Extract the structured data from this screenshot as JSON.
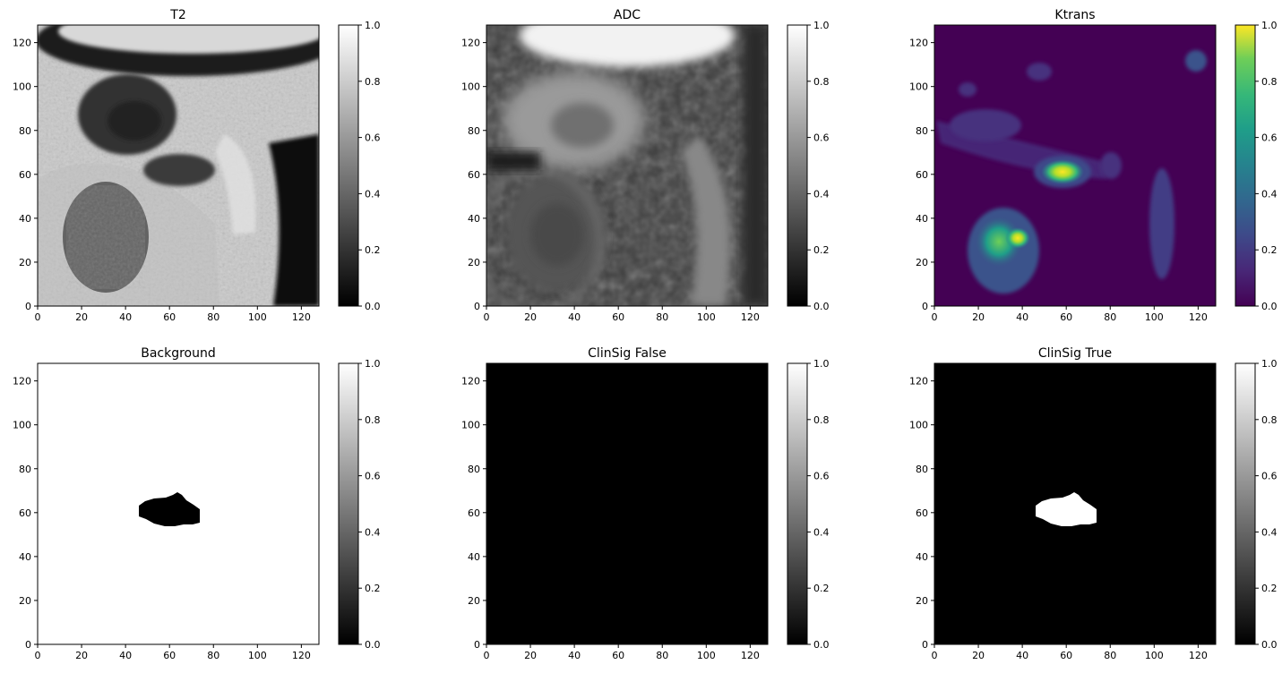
{
  "chart_data": [
    {
      "type": "heatmap",
      "title": "T2",
      "colormap": "gray",
      "content": "mri-t2",
      "xlim": [
        0,
        128
      ],
      "ylim": [
        0,
        128
      ],
      "xticks": [
        0,
        20,
        40,
        60,
        80,
        100,
        120
      ],
      "yticks": [
        0,
        20,
        40,
        60,
        80,
        100,
        120
      ],
      "colorbar": {
        "range": [
          0.0,
          1.0
        ],
        "ticks": [
          "0.0",
          "0.2",
          "0.4",
          "0.6",
          "0.8",
          "1.0"
        ]
      }
    },
    {
      "type": "heatmap",
      "title": "ADC",
      "colormap": "gray",
      "content": "mri-adc",
      "xlim": [
        0,
        128
      ],
      "ylim": [
        0,
        128
      ],
      "xticks": [
        0,
        20,
        40,
        60,
        80,
        100,
        120
      ],
      "yticks": [
        0,
        20,
        40,
        60,
        80,
        100,
        120
      ],
      "colorbar": {
        "range": [
          0.0,
          1.0
        ],
        "ticks": [
          "0.0",
          "0.2",
          "0.4",
          "0.6",
          "0.8",
          "1.0"
        ]
      }
    },
    {
      "type": "heatmap",
      "title": "Ktrans",
      "colormap": "viridis",
      "content": "mri-ktrans",
      "xlim": [
        0,
        128
      ],
      "ylim": [
        0,
        128
      ],
      "xticks": [
        0,
        20,
        40,
        60,
        80,
        100,
        120
      ],
      "yticks": [
        0,
        20,
        40,
        60,
        80,
        100,
        120
      ],
      "colorbar": {
        "range": [
          0.0,
          1.0
        ],
        "ticks": [
          "0.0",
          "0.2",
          "0.4",
          "0.6",
          "0.8",
          "1.0"
        ]
      },
      "hotspots": [
        {
          "x": 38,
          "y": 30,
          "value": 1.0
        },
        {
          "x": 57,
          "y": 61,
          "value": 0.85
        },
        {
          "x": 28,
          "y": 33,
          "value": 0.6
        }
      ]
    },
    {
      "type": "heatmap",
      "title": "Background",
      "colormap": "gray",
      "content": "mask",
      "background_value": 1.0,
      "mask_value": 0.0,
      "mask_region": {
        "x": [
          46,
          74
        ],
        "y": [
          53,
          67
        ]
      },
      "xlim": [
        0,
        128
      ],
      "ylim": [
        0,
        128
      ],
      "xticks": [
        0,
        20,
        40,
        60,
        80,
        100,
        120
      ],
      "yticks": [
        0,
        20,
        40,
        60,
        80,
        100,
        120
      ],
      "colorbar": {
        "range": [
          0.0,
          1.0
        ],
        "ticks": [
          "0.0",
          "0.2",
          "0.4",
          "0.6",
          "0.8",
          "1.0"
        ]
      }
    },
    {
      "type": "heatmap",
      "title": "ClinSig False",
      "colormap": "gray",
      "content": "mask",
      "background_value": 0.0,
      "xlim": [
        0,
        128
      ],
      "ylim": [
        0,
        128
      ],
      "xticks": [
        0,
        20,
        40,
        60,
        80,
        100,
        120
      ],
      "yticks": [
        0,
        20,
        40,
        60,
        80,
        100,
        120
      ],
      "colorbar": {
        "range": [
          0.0,
          1.0
        ],
        "ticks": [
          "0.0",
          "0.2",
          "0.4",
          "0.6",
          "0.8",
          "1.0"
        ]
      }
    },
    {
      "type": "heatmap",
      "title": "ClinSig True",
      "colormap": "gray",
      "content": "mask",
      "background_value": 0.0,
      "mask_value": 1.0,
      "mask_region": {
        "x": [
          46,
          74
        ],
        "y": [
          53,
          67
        ]
      },
      "xlim": [
        0,
        128
      ],
      "ylim": [
        0,
        128
      ],
      "xticks": [
        0,
        20,
        40,
        60,
        80,
        100,
        120
      ],
      "yticks": [
        0,
        20,
        40,
        60,
        80,
        100,
        120
      ],
      "colorbar": {
        "range": [
          0.0,
          1.0
        ],
        "ticks": [
          "0.0",
          "0.2",
          "0.4",
          "0.6",
          "0.8",
          "1.0"
        ]
      }
    }
  ],
  "colors": {
    "viridis_low": "#440154",
    "viridis_mid": "#21918c",
    "viridis_high": "#fde725",
    "gray_low": "#000000",
    "gray_high": "#ffffff"
  }
}
